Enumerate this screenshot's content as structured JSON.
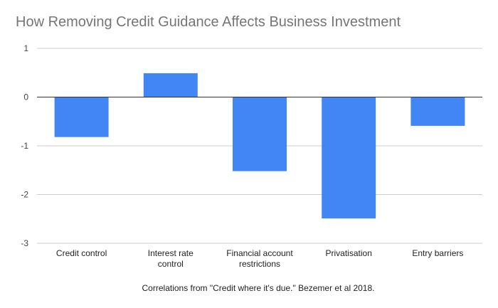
{
  "chart_data": {
    "type": "bar",
    "title": "How Removing Credit Guidance Affects Business Investment",
    "xlabel": "Correlations from \"Credit where it's due.\" Bezemer et al 2018.",
    "ylabel": "",
    "categories": [
      "Credit control",
      "Interest rate control",
      "Financial account restrictions",
      "Privatisation",
      "Entry barriers"
    ],
    "series": [
      {
        "values": [
          -0.82,
          0.49,
          -1.52,
          -2.49,
          -0.59
        ]
      }
    ],
    "ylim": [
      -3,
      1
    ],
    "yticks": [
      1,
      0,
      -1,
      -2,
      -3
    ],
    "grid": true,
    "legend": "none",
    "colors": {
      "bar": "#4285f4",
      "grid": "#cccccc",
      "zero_line": "#333333"
    }
  }
}
